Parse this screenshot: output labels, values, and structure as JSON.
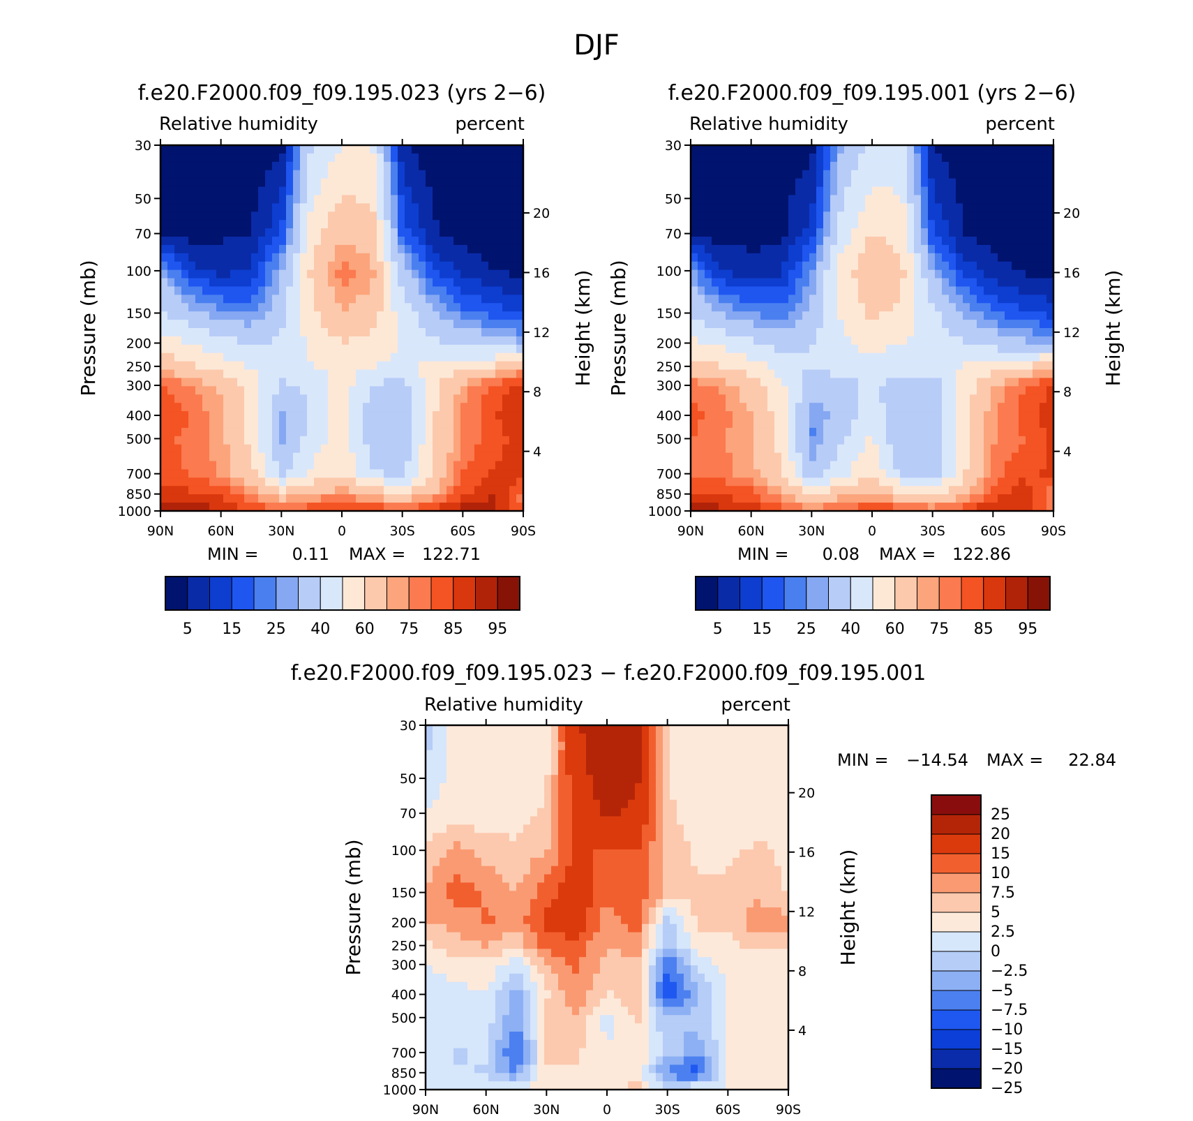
{
  "figure_title": "DJF",
  "colors": {
    "abs_scale": [
      "#00136e",
      "#0a2ba8",
      "#0d3ed0",
      "#1f56f0",
      "#4a7ff0",
      "#86a8f2",
      "#b7ccf7",
      "#d9e7fb",
      "#fde8d6",
      "#fcc9ac",
      "#fca47c",
      "#fb7a4f",
      "#f45323",
      "#d9370d",
      "#b02309",
      "#861306"
    ],
    "diff_scale": [
      "#8a0d0d",
      "#b42508",
      "#db3a0c",
      "#f25f2f",
      "#fa9a72",
      "#fcc9ae",
      "#fde9da",
      "#d6e6fb",
      "#b5cdf7",
      "#8db0f4",
      "#4c80f0",
      "#1f58f0",
      "#0c3fd8",
      "#0a2caa",
      "#00136e"
    ]
  },
  "chart_data": [
    {
      "type": "heatmap",
      "name": "case",
      "title": "f.e20.F2000.f09_f09.195.023 (yrs 2−6)",
      "variable": "Relative humidity",
      "units": "percent",
      "xlabel": "",
      "ylabel": "Pressure (mb)",
      "ylabel_right": "Height (km)",
      "x_ticks": [
        "90N",
        "60N",
        "30N",
        "0",
        "30S",
        "60S",
        "90S"
      ],
      "x_range": [
        90,
        -90
      ],
      "y_ticks": [
        30,
        50,
        70,
        100,
        150,
        200,
        250,
        300,
        400,
        500,
        700,
        850,
        1000
      ],
      "y_range": [
        30,
        1000
      ],
      "height_ticks": [
        20,
        16,
        12,
        8,
        4
      ],
      "min_label": "MIN =",
      "min_value": "0.11",
      "max_label": "MAX =",
      "max_value": "122.71",
      "colorbar_labels": [
        "5",
        "15",
        "25",
        "40",
        "60",
        "75",
        "85",
        "95"
      ],
      "field": {
        "p": [
          30,
          70,
          100,
          150,
          200,
          250,
          300,
          400,
          500,
          700,
          850,
          1000
        ],
        "lat": [
          90,
          75,
          60,
          45,
          30,
          15,
          0,
          -15,
          -30,
          -45,
          -60,
          -75,
          -90
        ],
        "rh": [
          [
            2,
            2,
            2,
            2,
            3,
            40,
            50,
            50,
            6,
            2,
            2,
            2,
            2
          ],
          [
            3,
            3,
            4,
            5,
            15,
            55,
            68,
            65,
            18,
            6,
            3,
            2,
            2
          ],
          [
            28,
            12,
            8,
            10,
            30,
            62,
            78,
            72,
            35,
            15,
            8,
            5,
            3
          ],
          [
            42,
            32,
            26,
            24,
            36,
            58,
            70,
            66,
            45,
            32,
            22,
            18,
            14
          ],
          [
            55,
            50,
            44,
            38,
            42,
            52,
            60,
            56,
            50,
            42,
            38,
            34,
            30
          ],
          [
            66,
            62,
            56,
            48,
            44,
            50,
            52,
            50,
            48,
            52,
            56,
            60,
            70
          ],
          [
            80,
            76,
            68,
            56,
            38,
            42,
            55,
            40,
            36,
            56,
            72,
            82,
            88
          ],
          [
            84,
            80,
            72,
            58,
            28,
            42,
            58,
            34,
            34,
            58,
            76,
            84,
            90
          ],
          [
            82,
            78,
            72,
            58,
            28,
            44,
            56,
            34,
            34,
            58,
            76,
            82,
            88
          ],
          [
            82,
            80,
            74,
            64,
            38,
            52,
            60,
            42,
            36,
            60,
            80,
            86,
            88
          ],
          [
            88,
            86,
            84,
            75,
            64,
            70,
            74,
            66,
            62,
            70,
            84,
            90,
            78
          ],
          [
            96,
            94,
            90,
            84,
            82,
            84,
            88,
            86,
            82,
            86,
            94,
            92,
            80
          ]
        ]
      }
    },
    {
      "type": "heatmap",
      "name": "control",
      "title": "f.e20.F2000.f09_f09.195.001 (yrs 2−6)",
      "variable": "Relative humidity",
      "units": "percent",
      "xlabel": "",
      "ylabel": "Pressure (mb)",
      "ylabel_right": "Height (km)",
      "x_ticks": [
        "90N",
        "60N",
        "30N",
        "0",
        "30S",
        "60S",
        "90S"
      ],
      "x_range": [
        90,
        -90
      ],
      "y_ticks": [
        30,
        50,
        70,
        100,
        150,
        200,
        250,
        300,
        400,
        500,
        700,
        850,
        1000
      ],
      "y_range": [
        30,
        1000
      ],
      "height_ticks": [
        20,
        16,
        12,
        8,
        4
      ],
      "min_label": "MIN =",
      "min_value": "0.08",
      "max_label": "MAX =",
      "max_value": "122.86",
      "colorbar_labels": [
        "5",
        "15",
        "25",
        "40",
        "60",
        "75",
        "85",
        "95"
      ],
      "field": {
        "p": [
          30,
          70,
          100,
          150,
          200,
          250,
          300,
          400,
          500,
          700,
          850,
          1000
        ],
        "lat": [
          90,
          75,
          60,
          45,
          30,
          15,
          0,
          -15,
          -30,
          -45,
          -60,
          -75,
          -90
        ],
        "rh": [
          [
            2,
            2,
            2,
            2,
            3,
            30,
            42,
            42,
            5,
            2,
            2,
            2,
            2
          ],
          [
            3,
            3,
            3,
            4,
            12,
            45,
            60,
            56,
            15,
            5,
            3,
            2,
            2
          ],
          [
            26,
            10,
            7,
            9,
            25,
            55,
            70,
            62,
            30,
            13,
            7,
            4,
            3
          ],
          [
            40,
            30,
            24,
            22,
            32,
            52,
            62,
            58,
            42,
            30,
            20,
            16,
            13
          ],
          [
            52,
            48,
            42,
            36,
            40,
            48,
            54,
            50,
            48,
            40,
            36,
            32,
            28
          ],
          [
            64,
            60,
            54,
            46,
            40,
            44,
            46,
            44,
            46,
            50,
            54,
            58,
            68
          ],
          [
            78,
            74,
            66,
            52,
            34,
            36,
            42,
            34,
            34,
            54,
            70,
            80,
            86
          ],
          [
            82,
            78,
            70,
            56,
            25,
            34,
            46,
            30,
            32,
            56,
            74,
            82,
            88
          ],
          [
            80,
            76,
            70,
            56,
            24,
            38,
            52,
            30,
            32,
            56,
            74,
            80,
            86
          ],
          [
            80,
            78,
            72,
            62,
            34,
            48,
            58,
            38,
            34,
            58,
            78,
            84,
            86
          ],
          [
            86,
            84,
            82,
            72,
            60,
            66,
            70,
            62,
            58,
            68,
            82,
            88,
            76
          ],
          [
            95,
            92,
            88,
            82,
            78,
            82,
            86,
            84,
            80,
            84,
            92,
            90,
            78
          ]
        ]
      }
    },
    {
      "type": "heatmap",
      "name": "difference",
      "title": "f.e20.F2000.f09_f09.195.023 − f.e20.F2000.f09_f09.195.001",
      "variable": "Relative humidity",
      "units": "percent",
      "xlabel": "",
      "ylabel": "Pressure (mb)",
      "ylabel_right": "Height (km)",
      "x_ticks": [
        "90N",
        "60N",
        "30N",
        "0",
        "30S",
        "60S",
        "90S"
      ],
      "x_range": [
        90,
        -90
      ],
      "y_ticks": [
        30,
        50,
        70,
        100,
        150,
        200,
        250,
        300,
        400,
        500,
        700,
        850,
        1000
      ],
      "y_range": [
        30,
        1000
      ],
      "height_ticks": [
        20,
        16,
        12,
        8,
        4
      ],
      "min_label": "MIN =",
      "min_value": "−14.54",
      "max_label": "MAX =",
      "max_value": "22.84",
      "colorbar_labels": [
        "25",
        "20",
        "15",
        "10",
        "7.5",
        "5",
        "2.5",
        "0",
        "−2.5",
        "−5",
        "−7.5",
        "−10",
        "−15",
        "−20",
        "−25"
      ],
      "field": {
        "p": [
          30,
          70,
          100,
          150,
          200,
          250,
          300,
          400,
          500,
          700,
          850,
          1000
        ],
        "lat": [
          90,
          75,
          60,
          45,
          30,
          15,
          0,
          -15,
          -30,
          -45,
          -60,
          -75,
          -90
        ],
        "rh": [
          [
            -4,
            1,
            1,
            1,
            1,
            14,
            20,
            18,
            2,
            1,
            1,
            1,
            1
          ],
          [
            0,
            1,
            1,
            1,
            3,
            12,
            16,
            14,
            3,
            1,
            1,
            1,
            1
          ],
          [
            3,
            6,
            4,
            3,
            5,
            11,
            9,
            10,
            4,
            2,
            2,
            3,
            2
          ],
          [
            5,
            9,
            7,
            5,
            9,
            12,
            8,
            10,
            4,
            3,
            3,
            4,
            2
          ],
          [
            5,
            6,
            8,
            6,
            11,
            12,
            6,
            9,
            -4,
            3,
            3,
            7,
            6
          ],
          [
            2,
            4,
            5,
            3,
            9,
            9,
            5,
            6,
            -5,
            1,
            2,
            3,
            3
          ],
          [
            0,
            1,
            2,
            -2,
            5,
            8,
            4,
            5,
            -10,
            -2,
            1,
            1,
            1
          ],
          [
            -1,
            -1,
            0,
            -6,
            2,
            7,
            2,
            5,
            -13,
            -5,
            0,
            0,
            1
          ],
          [
            -1,
            -1,
            -1,
            -7,
            3,
            5,
            -1,
            3,
            -5,
            -4,
            0,
            0,
            0
          ],
          [
            0,
            -3,
            -2,
            -11,
            3,
            3,
            0,
            2,
            -3,
            -7,
            0,
            1,
            0
          ],
          [
            0,
            -2,
            -3,
            -8,
            2,
            2,
            1,
            2,
            -9,
            -12,
            1,
            1,
            0
          ],
          [
            0,
            -1,
            -1,
            1,
            1,
            2,
            2,
            3,
            -2,
            1,
            0,
            0,
            0
          ]
        ]
      }
    }
  ]
}
